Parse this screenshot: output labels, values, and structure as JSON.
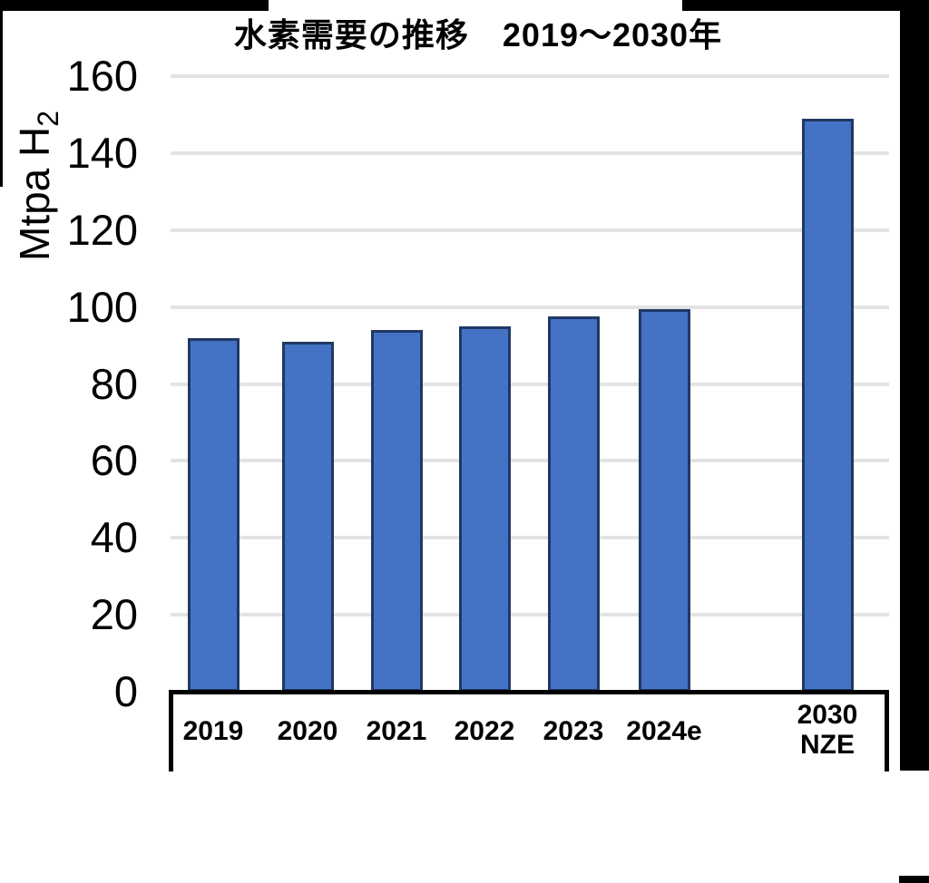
{
  "chart_data": {
    "type": "bar",
    "title": "水素需要の推移　2019～2030年",
    "categories": [
      "2019",
      "2020",
      "2021",
      "2022",
      "2023",
      "2024e",
      "2030 NZE"
    ],
    "x_tick_lines": [
      [
        "2019"
      ],
      [
        "2020"
      ],
      [
        "2021"
      ],
      [
        "2022"
      ],
      [
        "2023"
      ],
      [
        "2024e"
      ],
      [
        "2030",
        "NZE"
      ]
    ],
    "values": [
      92,
      91,
      94,
      95,
      97.5,
      99.5,
      149
    ],
    "ylabel": {
      "text": "Mtpa H",
      "subscript": "2"
    },
    "yticks": [
      0,
      20,
      40,
      60,
      80,
      100,
      120,
      140,
      160
    ],
    "ylim": [
      0,
      160
    ],
    "grid": "horizontal-only",
    "legend": "none",
    "colors": {
      "bar_fill": "#4472C4",
      "bar_border": "#203864",
      "gridline": "#E3E3E3",
      "axis_box": "#000000",
      "background": "#FFFFFF",
      "edge_mask": "#000000"
    }
  }
}
